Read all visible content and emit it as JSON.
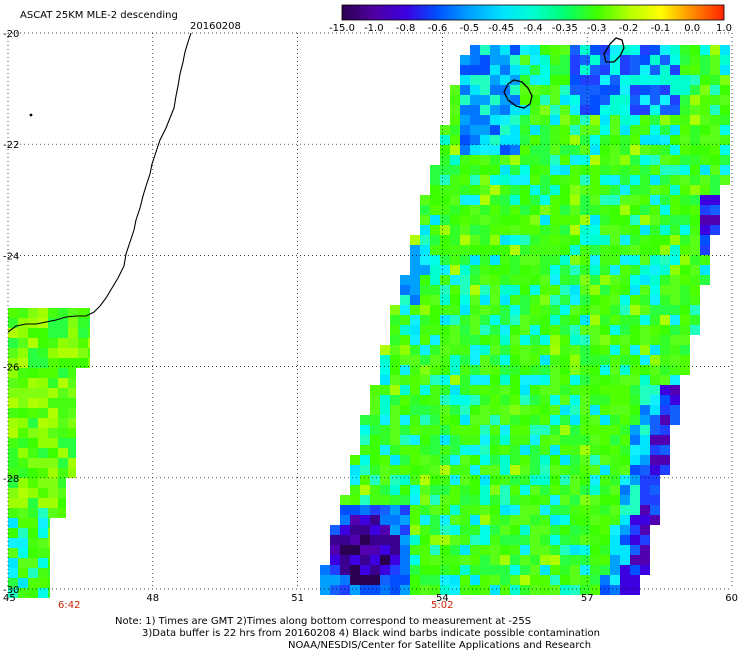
{
  "header": {
    "title": "ASCAT 25KM MLE-2 descending",
    "date": "20160208"
  },
  "colorbar": {
    "labels": [
      "-15.0",
      "-1.0",
      "-0.8",
      "-0.6",
      "-0.5",
      "-0.45",
      "-0.4",
      "-0.35",
      "-0.3",
      "-0.2",
      "-0.1",
      "0.0",
      "1.0"
    ],
    "colors": [
      "#2a0050",
      "#5000a0",
      "#3c00e0",
      "#0050ff",
      "#00a0ff",
      "#00e0ff",
      "#00ffd0",
      "#00ff70",
      "#40ff00",
      "#b0ff00",
      "#ffff00",
      "#ff8c00",
      "#ff2200"
    ]
  },
  "axes": {
    "lon_ticks": [
      "45",
      "48",
      "51",
      "54",
      "57",
      "60"
    ],
    "lat_ticks": [
      "-20",
      "-22",
      "-24",
      "-26",
      "-28",
      "-30"
    ]
  },
  "pass_times": [
    "6:42",
    "5:02"
  ],
  "notes": {
    "line1": "Note: 1) Times are GMT 2)Times along bottom correspond to measurement at -25S",
    "line2": "3)Data buffer is 22 hrs from 20160208 4) Black wind barbs indicate possible contamination",
    "line3": "NOAA/NESDIS/Center for Satellite Applications and Research"
  }
}
